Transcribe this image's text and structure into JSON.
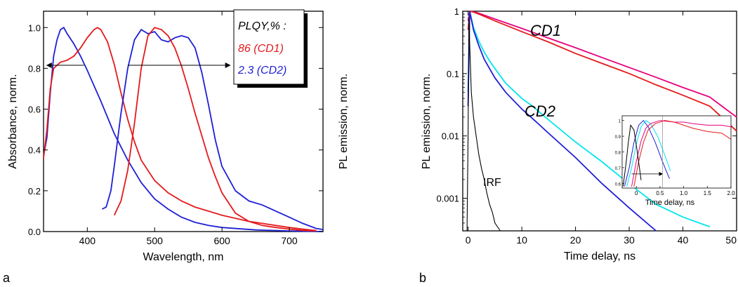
{
  "chart_data": [
    {
      "panel_label": "a",
      "type": "line",
      "xlabel": "Wavelength, nm",
      "ylabel_left": "Absorbance, norm.",
      "ylabel_right": "PL emission, norm.",
      "xlim": [
        335,
        750
      ],
      "ylim": [
        0,
        1.08
      ],
      "xticks": [
        400,
        500,
        600,
        700
      ],
      "xtick_labels": [
        "400",
        "500",
        "600",
        "700"
      ],
      "yticks": [
        0.0,
        0.2,
        0.4,
        0.6,
        0.8,
        1.0
      ],
      "ytick_labels": [
        "0.0",
        "0.2",
        "0.4",
        "0.6",
        "0.8",
        "1.0"
      ],
      "grid": false,
      "legend_title": "PLQY,% :",
      "legend_entries": [
        {
          "text": "86 (CD1)",
          "color": "#e41a1c"
        },
        {
          "text": "2.3 (CD2)",
          "color": "#1f1fd6"
        }
      ],
      "series": [
        {
          "color": "#1f1fd6",
          "x": [
            335,
            340,
            345,
            350,
            355,
            360,
            365,
            370,
            380,
            390,
            400,
            420,
            440,
            460,
            480,
            500,
            520,
            540,
            560,
            580,
            600,
            650,
            700,
            750
          ],
          "values": [
            0.37,
            0.46,
            0.68,
            0.86,
            0.94,
            0.99,
            1.0,
            0.97,
            0.92,
            0.86,
            0.79,
            0.64,
            0.48,
            0.35,
            0.24,
            0.16,
            0.11,
            0.07,
            0.045,
            0.03,
            0.02,
            0.008,
            0.003,
            0.0
          ]
        },
        {
          "color": "#e41a1c",
          "x": [
            335,
            340,
            345,
            350,
            360,
            370,
            380,
            390,
            400,
            410,
            415,
            420,
            430,
            440,
            450,
            460,
            470,
            480,
            500,
            520,
            540,
            560,
            580,
            600,
            620,
            640,
            660,
            680,
            700,
            720,
            740
          ],
          "values": [
            0.36,
            0.5,
            0.7,
            0.8,
            0.83,
            0.84,
            0.86,
            0.9,
            0.95,
            0.99,
            1.0,
            0.99,
            0.93,
            0.82,
            0.68,
            0.55,
            0.44,
            0.35,
            0.25,
            0.19,
            0.15,
            0.12,
            0.1,
            0.08,
            0.065,
            0.05,
            0.04,
            0.03,
            0.02,
            0.012,
            0.005
          ]
        },
        {
          "color": "#1f1fd6",
          "x": [
            422,
            428,
            435,
            440,
            450,
            460,
            470,
            480,
            490,
            500,
            510,
            520,
            530,
            540,
            550,
            560,
            570,
            580,
            590,
            600,
            620,
            640,
            660,
            680,
            700,
            720,
            740,
            750
          ],
          "values": [
            0.11,
            0.12,
            0.2,
            0.32,
            0.58,
            0.8,
            0.94,
            0.99,
            0.97,
            0.98,
            0.94,
            0.93,
            0.95,
            0.96,
            0.95,
            0.9,
            0.78,
            0.62,
            0.45,
            0.32,
            0.2,
            0.15,
            0.13,
            0.1,
            0.07,
            0.04,
            0.015,
            0.01
          ]
        },
        {
          "color": "#e41a1c",
          "x": [
            440,
            450,
            460,
            470,
            480,
            490,
            500,
            510,
            520,
            530,
            540,
            550,
            560,
            570,
            580,
            590,
            600,
            620,
            640,
            660,
            680,
            700,
            720,
            740
          ],
          "values": [
            0.08,
            0.15,
            0.3,
            0.53,
            0.8,
            0.96,
            1.0,
            0.99,
            0.96,
            0.9,
            0.81,
            0.7,
            0.58,
            0.47,
            0.36,
            0.27,
            0.19,
            0.09,
            0.05,
            0.03,
            0.02,
            0.012,
            0.006,
            0.003
          ]
        }
      ],
      "arrows": [
        {
          "x1": 395,
          "x2": 340,
          "y": 0.815,
          "note": "left-pointing arrow toward absorbance axis"
        },
        {
          "x1": 460,
          "x2": 612,
          "y": 0.815,
          "note": "right-pointing arrow toward PL axis"
        }
      ]
    },
    {
      "panel_label": "b",
      "type": "line",
      "xlabel": "Time delay, ns",
      "ylabel": "PL emission, norm.",
      "y_scale": "log",
      "xlim": [
        -1,
        50
      ],
      "ylim": [
        0.0003,
        1
      ],
      "xticks": [
        0,
        10,
        20,
        30,
        40,
        50
      ],
      "xtick_labels": [
        "0",
        "10",
        "20",
        "30",
        "40",
        "50"
      ],
      "yticks": [
        1,
        0.1,
        0.01,
        0.001
      ],
      "ytick_labels": [
        "1",
        "0.1",
        "0.01",
        "0.001"
      ],
      "grid": false,
      "annotations": [
        "CD1",
        "CD2",
        "IRF"
      ],
      "series": [
        {
          "color": "#e6007e",
          "x": [
            0,
            0.3,
            1,
            2,
            5,
            10,
            15,
            20,
            25,
            30,
            35,
            40,
            45,
            50
          ],
          "values": [
            0.7,
            1.0,
            0.98,
            0.93,
            0.75,
            0.53,
            0.37,
            0.26,
            0.18,
            0.125,
            0.087,
            0.06,
            0.042,
            0.02
          ]
        },
        {
          "color": "#e41a1c",
          "x": [
            0,
            0.3,
            1,
            2,
            5,
            10,
            15,
            20,
            25,
            30,
            35,
            40,
            45,
            50
          ],
          "values": [
            0.5,
            1.0,
            0.97,
            0.9,
            0.7,
            0.47,
            0.32,
            0.21,
            0.145,
            0.1,
            0.066,
            0.045,
            0.03,
            0.012
          ]
        },
        {
          "color": "#00e5ee",
          "x": [
            0,
            0.3,
            1,
            2,
            3,
            4,
            5,
            7,
            10,
            12,
            15,
            20,
            25,
            30,
            35,
            40,
            45
          ],
          "values": [
            0.05,
            1.0,
            0.55,
            0.33,
            0.22,
            0.16,
            0.12,
            0.07,
            0.04,
            0.03,
            0.018,
            0.008,
            0.0038,
            0.0017,
            0.0008,
            0.0005,
            0.00035
          ]
        },
        {
          "color": "#1f1fd6",
          "x": [
            0,
            0.3,
            1,
            2,
            3,
            4,
            5,
            7,
            10,
            12,
            15,
            20,
            25,
            30,
            35
          ],
          "values": [
            0.03,
            1.0,
            0.5,
            0.28,
            0.17,
            0.12,
            0.085,
            0.05,
            0.027,
            0.019,
            0.011,
            0.0045,
            0.0017,
            0.0007,
            0.0003
          ]
        },
        {
          "color": "#000000",
          "x": [
            -0.2,
            0,
            0.15,
            0.3,
            0.6,
            1,
            1.5,
            2,
            2.5,
            3,
            3.5,
            4,
            4.5,
            5,
            6
          ],
          "values": [
            0.0003,
            0.01,
            0.8,
            0.3,
            0.05,
            0.02,
            0.01,
            0.005,
            0.003,
            0.002,
            0.0012,
            0.0008,
            0.0006,
            0.0004,
            0.0003
          ]
        }
      ]
    },
    {
      "panel_label": "",
      "type": "line",
      "role": "inset",
      "xlabel": "Time delay, ns",
      "xlim": [
        -0.3,
        2.0
      ],
      "ylim": [
        0.57,
        1.03
      ],
      "xticks": [
        0,
        0.5,
        1.0,
        1.5,
        2.0
      ],
      "xtick_labels": [
        "0",
        "0.5",
        "1.0",
        "1.5",
        "2.0"
      ],
      "yticks": [
        0.6,
        0.7,
        0.8,
        0.9,
        1.0
      ],
      "ytick_labels": [
        "0.6",
        "0.7",
        "0.8",
        "0.9",
        "1"
      ],
      "series": [
        {
          "color": "#1f1fd6",
          "x": [
            -0.25,
            -0.15,
            -0.05,
            0.05,
            0.15,
            0.25,
            0.4,
            0.55,
            0.7
          ],
          "values": [
            0.58,
            0.7,
            0.86,
            0.97,
            1.0,
            0.96,
            0.86,
            0.74,
            0.63
          ]
        },
        {
          "color": "#00e5ee",
          "x": [
            -0.2,
            -0.1,
            0.0,
            0.1,
            0.2,
            0.3,
            0.45,
            0.6,
            0.72
          ],
          "values": [
            0.58,
            0.7,
            0.85,
            0.96,
            1.0,
            0.98,
            0.9,
            0.78,
            0.68
          ]
        },
        {
          "color": "#e6007e",
          "x": [
            -0.1,
            0.0,
            0.1,
            0.2,
            0.3,
            0.5,
            0.8,
            1.0,
            1.2,
            1.5,
            1.8,
            2.0
          ],
          "values": [
            0.58,
            0.74,
            0.87,
            0.95,
            0.98,
            1.0,
            0.99,
            0.99,
            0.98,
            0.97,
            0.97,
            0.96
          ]
        },
        {
          "color": "#e41a1c",
          "x": [
            -0.05,
            0.05,
            0.15,
            0.25,
            0.4,
            0.6,
            0.8,
            1.0,
            1.2,
            1.5,
            1.8,
            2.0
          ],
          "values": [
            0.58,
            0.74,
            0.86,
            0.94,
            0.98,
            1.0,
            0.99,
            0.97,
            0.95,
            0.93,
            0.92,
            0.88
          ]
        },
        {
          "color": "#000000",
          "x": [
            -0.28,
            -0.22,
            -0.17,
            -0.12,
            -0.05,
            0.02,
            0.1
          ],
          "values": [
            0.58,
            0.72,
            0.86,
            0.97,
            0.94,
            0.8,
            0.62
          ]
        }
      ],
      "arrow": {
        "x1": -0.1,
        "x2": 0.55,
        "y": 0.66
      }
    }
  ]
}
